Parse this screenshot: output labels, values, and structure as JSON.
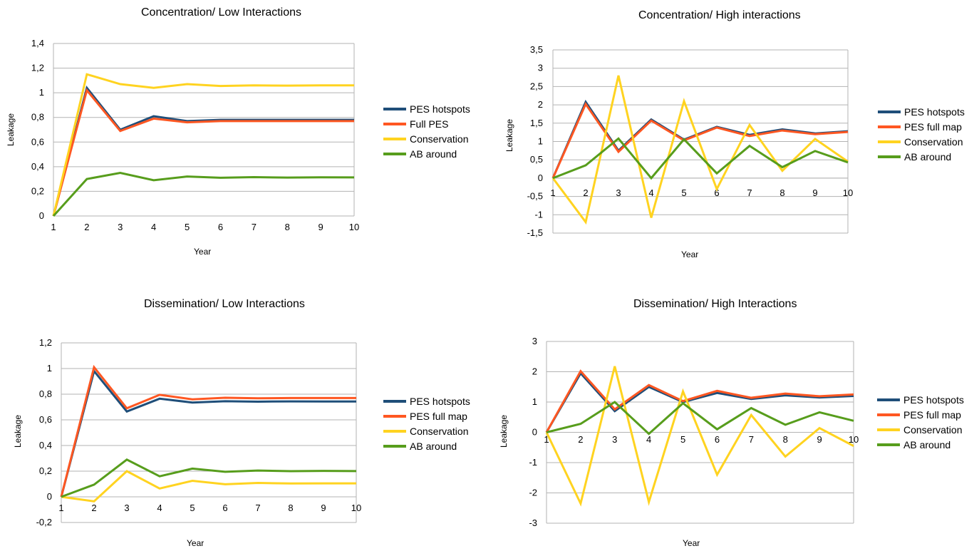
{
  "chart_data": [
    {
      "type": "line",
      "title": "Concentration/ Low Interactions",
      "xlabel": "Year",
      "ylabel": "Leakage",
      "x": [
        1,
        2,
        3,
        4,
        5,
        6,
        7,
        8,
        9,
        10
      ],
      "ylim": [
        0,
        1.4
      ],
      "ystep": 0.2,
      "ytick_labels": [
        "0",
        "0,2",
        "0,4",
        "0,6",
        "0,8",
        "1",
        "1,2",
        "1,4"
      ],
      "grid": true,
      "legend_position": "right",
      "series": [
        {
          "name": "PES hotspots",
          "color": "#1f4e79",
          "values": [
            0,
            1.04,
            0.7,
            0.81,
            0.77,
            0.78,
            0.78,
            0.78,
            0.78,
            0.78
          ]
        },
        {
          "name": "Full PES",
          "color": "#ff5722",
          "values": [
            0,
            1.02,
            0.69,
            0.79,
            0.76,
            0.77,
            0.77,
            0.77,
            0.77,
            0.77
          ]
        },
        {
          "name": "Conservation",
          "color": "#ffd320",
          "values": [
            0,
            1.15,
            1.07,
            1.04,
            1.07,
            1.055,
            1.06,
            1.058,
            1.06,
            1.06
          ]
        },
        {
          "name": "AB around",
          "color": "#579d1c",
          "values": [
            0,
            0.3,
            0.35,
            0.29,
            0.32,
            0.31,
            0.315,
            0.312,
            0.314,
            0.313
          ]
        }
      ]
    },
    {
      "type": "line",
      "title": "Concentration/ High interactions",
      "xlabel": "Year",
      "ylabel": "Leakage",
      "x": [
        1,
        2,
        3,
        4,
        5,
        6,
        7,
        8,
        9,
        10
      ],
      "ylim": [
        -1.5,
        3.5
      ],
      "ystep": 0.5,
      "ytick_labels": [
        "-1,5",
        "-1",
        "-0,5",
        "0",
        "0,5",
        "1",
        "1,5",
        "2",
        "2,5",
        "3",
        "3,5"
      ],
      "grid": true,
      "legend_position": "right",
      "series": [
        {
          "name": "PES hotspots",
          "color": "#1f4e79",
          "values": [
            0,
            2.08,
            0.75,
            1.6,
            1.05,
            1.4,
            1.18,
            1.33,
            1.22,
            1.28
          ]
        },
        {
          "name": "PES full map",
          "color": "#ff5722",
          "values": [
            0,
            2.02,
            0.72,
            1.57,
            1.03,
            1.38,
            1.15,
            1.3,
            1.2,
            1.26
          ]
        },
        {
          "name": "Conservation",
          "color": "#ffd320",
          "values": [
            0,
            -1.2,
            2.8,
            -1.08,
            2.1,
            -0.3,
            1.45,
            0.2,
            1.07,
            0.45
          ]
        },
        {
          "name": "AB around",
          "color": "#579d1c",
          "values": [
            0,
            0.35,
            1.08,
            0.0,
            1.06,
            0.13,
            0.88,
            0.3,
            0.74,
            0.43
          ]
        }
      ]
    },
    {
      "type": "line",
      "title": "Dissemination/ Low Interactions",
      "xlabel": "Year",
      "ylabel": "Leakage",
      "x": [
        1,
        2,
        3,
        4,
        5,
        6,
        7,
        8,
        9,
        10
      ],
      "ylim": [
        -0.2,
        1.2
      ],
      "ystep": 0.2,
      "ytick_labels": [
        "-0,2",
        "0",
        "0,2",
        "0,4",
        "0,6",
        "0,8",
        "1",
        "1,2"
      ],
      "grid": true,
      "legend_position": "right",
      "series": [
        {
          "name": "PES hotspots",
          "color": "#1f4e79",
          "values": [
            0,
            0.98,
            0.665,
            0.765,
            0.735,
            0.745,
            0.742,
            0.744,
            0.743,
            0.743
          ]
        },
        {
          "name": "PES full map",
          "color": "#ff5722",
          "values": [
            0,
            1.01,
            0.69,
            0.795,
            0.76,
            0.772,
            0.768,
            0.77,
            0.77,
            0.77
          ]
        },
        {
          "name": "Conservation",
          "color": "#ffd320",
          "values": [
            0,
            -0.035,
            0.2,
            0.065,
            0.125,
            0.098,
            0.108,
            0.104,
            0.105,
            0.105
          ]
        },
        {
          "name": "AB around",
          "color": "#579d1c",
          "values": [
            0,
            0.095,
            0.29,
            0.16,
            0.22,
            0.195,
            0.205,
            0.2,
            0.202,
            0.201
          ]
        }
      ]
    },
    {
      "type": "line",
      "title": "Dissemination/ High Interactions",
      "xlabel": "Year",
      "ylabel": "Leakage",
      "x": [
        1,
        2,
        3,
        4,
        5,
        6,
        7,
        8,
        9,
        10
      ],
      "ylim": [
        -3,
        3
      ],
      "ystep": 1,
      "ytick_labels": [
        "-3",
        "-2",
        "-1",
        "0",
        "1",
        "2",
        "3"
      ],
      "grid": true,
      "legend_position": "right",
      "series": [
        {
          "name": "PES hotspots",
          "color": "#1f4e79",
          "values": [
            0,
            1.95,
            0.7,
            1.5,
            1.0,
            1.3,
            1.1,
            1.22,
            1.15,
            1.2
          ]
        },
        {
          "name": "PES full map",
          "color": "#ff5722",
          "values": [
            0,
            2.02,
            0.76,
            1.56,
            1.03,
            1.37,
            1.14,
            1.28,
            1.19,
            1.25
          ]
        },
        {
          "name": "Conservation",
          "color": "#ffd320",
          "values": [
            0,
            -2.35,
            2.18,
            -2.3,
            1.35,
            -1.4,
            0.57,
            -0.8,
            0.14,
            -0.45
          ]
        },
        {
          "name": "AB around",
          "color": "#579d1c",
          "values": [
            0,
            0.28,
            1.0,
            -0.05,
            0.96,
            0.1,
            0.8,
            0.25,
            0.66,
            0.38
          ]
        }
      ]
    }
  ]
}
